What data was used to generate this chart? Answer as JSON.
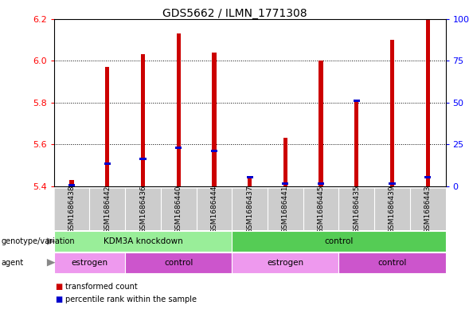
{
  "title": "GDS5662 / ILMN_1771308",
  "samples": [
    "GSM1686438",
    "GSM1686442",
    "GSM1686436",
    "GSM1686440",
    "GSM1686444",
    "GSM1686437",
    "GSM1686441",
    "GSM1686445",
    "GSM1686435",
    "GSM1686439",
    "GSM1686443"
  ],
  "transformed_counts": [
    5.43,
    5.97,
    6.03,
    6.13,
    6.04,
    5.45,
    5.63,
    6.0,
    5.81,
    6.1,
    6.2
  ],
  "percentile_values": [
    5.403,
    5.508,
    5.53,
    5.583,
    5.57,
    5.443,
    5.413,
    5.413,
    5.81,
    5.413,
    5.443
  ],
  "base_value": 5.4,
  "ylim_left": [
    5.4,
    6.2
  ],
  "ylim_right": [
    0,
    100
  ],
  "yticks_left": [
    5.4,
    5.6,
    5.8,
    6.0,
    6.2
  ],
  "yticks_right": [
    0,
    25,
    50,
    75,
    100
  ],
  "ytick_labels_right": [
    "0",
    "25",
    "50",
    "75",
    "100%"
  ],
  "bar_color": "#cc0000",
  "percentile_color": "#0000cc",
  "bar_width": 0.12,
  "groups_genotype": [
    {
      "label": "KDM3A knockdown",
      "start": 0,
      "end": 5,
      "color": "#99ee99"
    },
    {
      "label": "control",
      "start": 5,
      "end": 11,
      "color": "#55cc55"
    }
  ],
  "groups_agent": [
    {
      "label": "estrogen",
      "start": 0,
      "end": 2,
      "color": "#ee99ee"
    },
    {
      "label": "control",
      "start": 2,
      "end": 5,
      "color": "#cc55cc"
    },
    {
      "label": "estrogen",
      "start": 5,
      "end": 8,
      "color": "#ee99ee"
    },
    {
      "label": "control",
      "start": 8,
      "end": 11,
      "color": "#cc55cc"
    }
  ],
  "legend": [
    {
      "label": "transformed count",
      "color": "#cc0000"
    },
    {
      "label": "percentile rank within the sample",
      "color": "#0000cc"
    }
  ]
}
